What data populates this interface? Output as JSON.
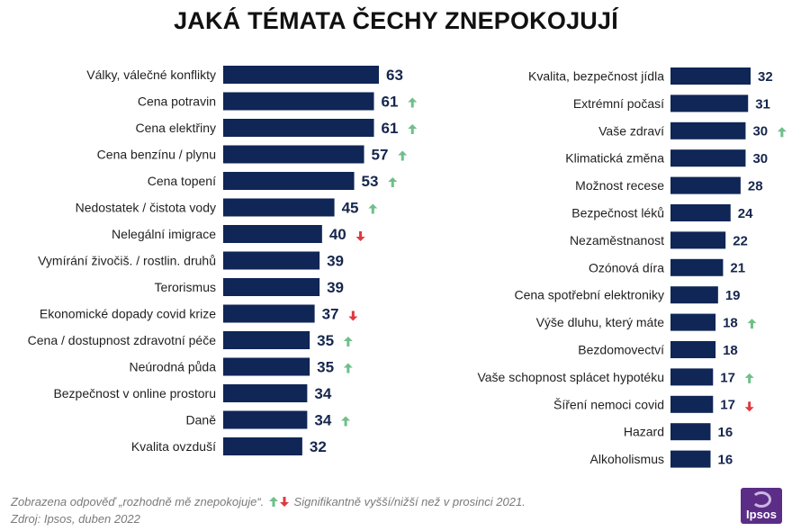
{
  "title": "JAKÁ TÉMATA ČECHY ZNEPOKOJUJÍ",
  "footnote": {
    "line1_a": "Zobrazena odpověď „rozhodně mě znepokojuje“.",
    "line1_b": "Signifikantně vyšší/nižší než v prosinci 2021.",
    "line2": "Zdroj: Ipsos, duben 2022"
  },
  "logo_text": "Ipsos",
  "colors": {
    "bar": "#0f2657",
    "value": "#16264d",
    "up": "#6fbf8a",
    "down": "#e0383f",
    "logo": "#5b2d86"
  },
  "chart_data": [
    {
      "type": "bar",
      "orientation": "horizontal",
      "categories": [
        "Války, válečné konflikty",
        "Cena potravin",
        "Cena elektřiny",
        "Cena benzínu / plynu",
        "Cena topení",
        "Nedostatek / čistota vody",
        "Nelegální imigrace",
        "Vymírání živočiš. / rostlin. druhů",
        "Terorismus",
        "Ekonomické dopady covid krize",
        "Cena / dostupnost zdravotní péče",
        "Neúrodná půda",
        "Bezpečnost v online prostoru",
        "Daně",
        "Kvalita ovzduší"
      ],
      "values": [
        63,
        61,
        61,
        57,
        53,
        45,
        40,
        39,
        39,
        37,
        35,
        35,
        34,
        34,
        32
      ],
      "change": [
        "",
        "up",
        "up",
        "up",
        "up",
        "up",
        "down",
        "",
        "",
        "down",
        "up",
        "up",
        "",
        "up",
        ""
      ]
    },
    {
      "type": "bar",
      "orientation": "horizontal",
      "categories": [
        "Kvalita, bezpečnost jídla",
        "Extrémní počasí",
        "Vaše zdraví",
        "Klimatická změna",
        "Možnost recese",
        "Bezpečnost léků",
        "Nezaměstnanost",
        "Ozónová díra",
        "Cena spotřební elektroniky",
        "Výše dluhu, který máte",
        "Bezdomovectví",
        "Vaše schopnost splácet hypotéku",
        "Šíření nemoci covid",
        "Hazard",
        "Alkoholismus"
      ],
      "values": [
        32,
        31,
        30,
        30,
        28,
        24,
        22,
        21,
        19,
        18,
        18,
        17,
        17,
        16,
        16
      ],
      "change": [
        "",
        "",
        "up",
        "",
        "",
        "",
        "",
        "",
        "",
        "up",
        "",
        "up",
        "down",
        "",
        ""
      ]
    }
  ]
}
